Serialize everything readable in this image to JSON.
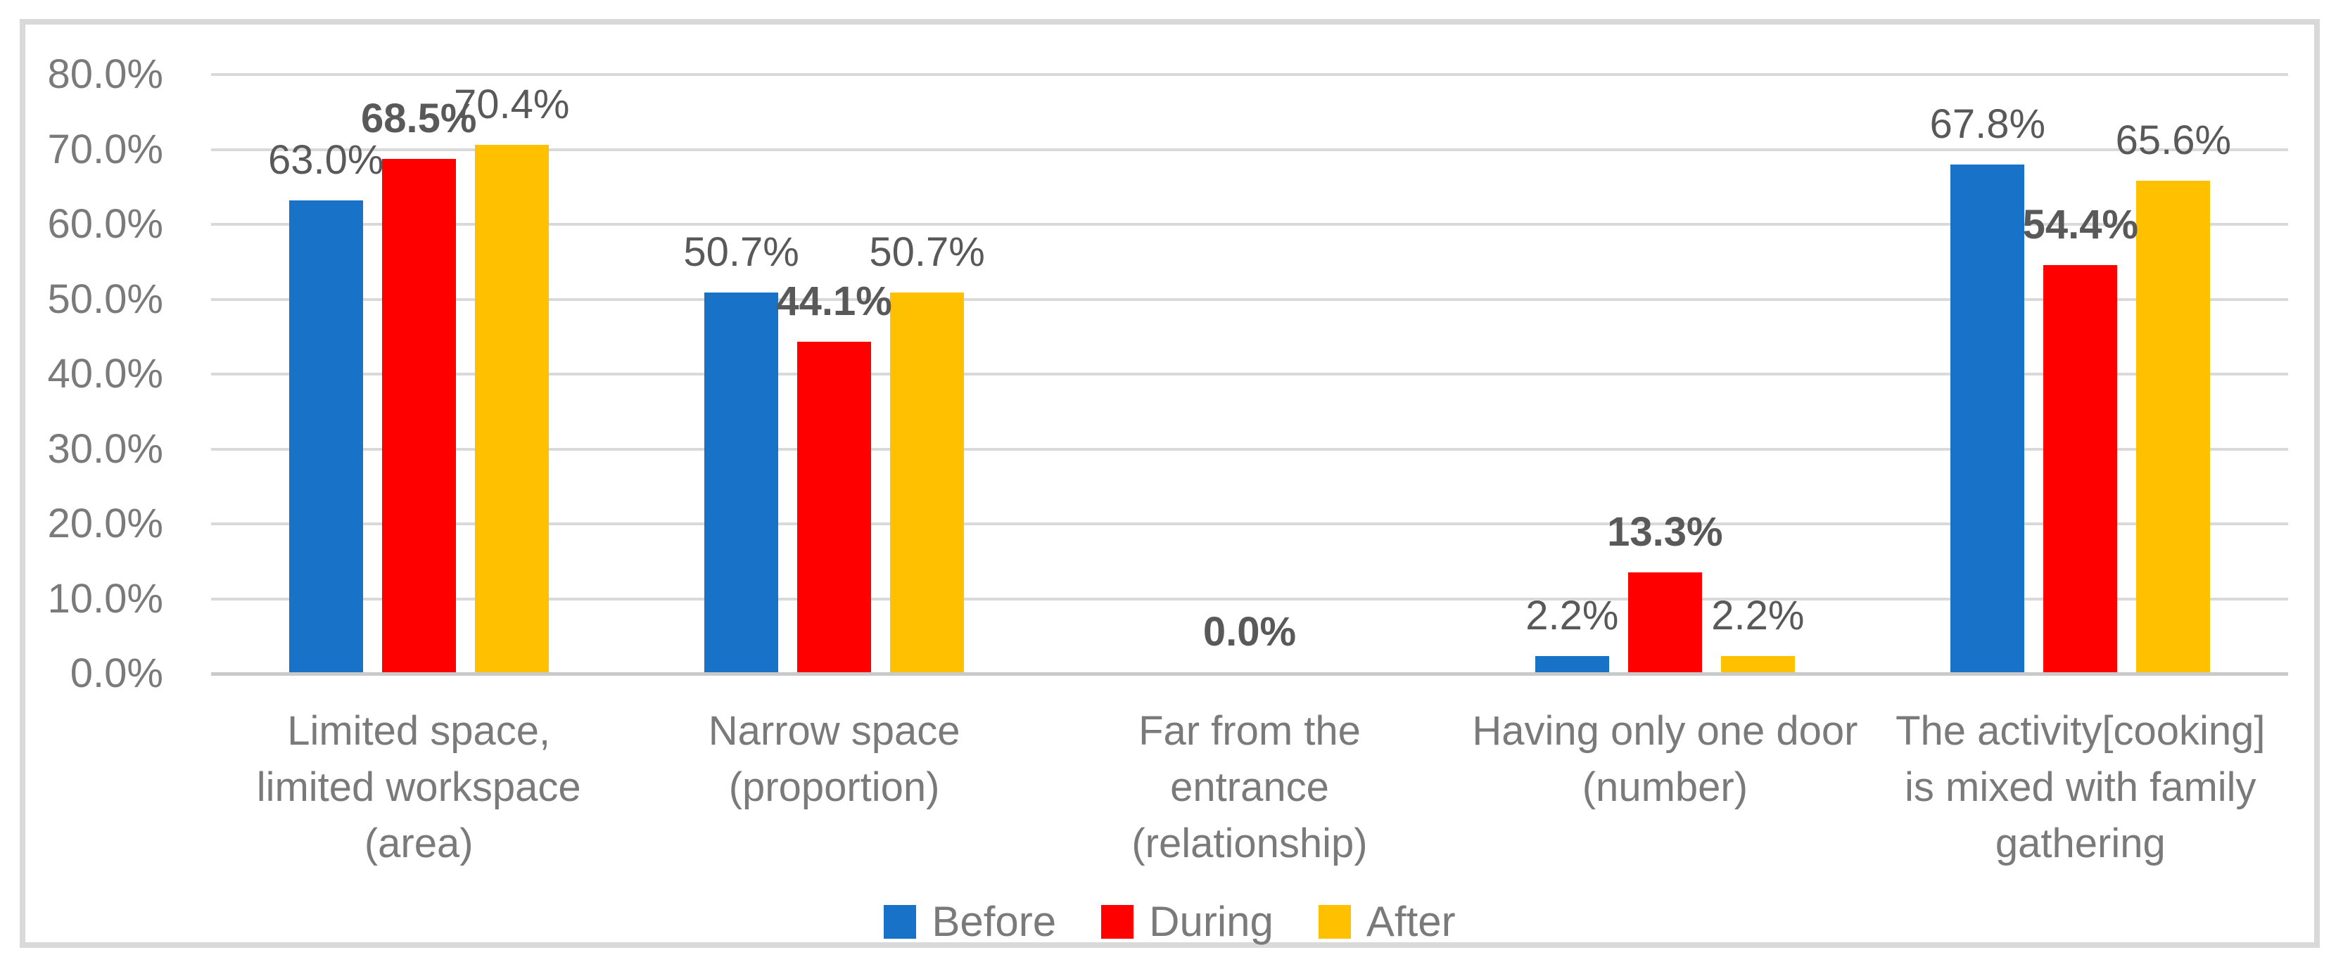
{
  "chart_data": {
    "type": "bar",
    "title": "",
    "subtitle": "",
    "xlabel": "",
    "ylabel": "",
    "grid": true,
    "ylim_percent": [
      0,
      80
    ],
    "categories": [
      "Limited space, limited workspace (area)",
      "Narrow space (proportion)",
      "Far from the entrance (relationship)",
      "Having only one door (number)",
      "The activity[cooking] is mixed with family gathering"
    ],
    "category_lines": [
      [
        "Limited space,",
        "limited workspace",
        "(area)"
      ],
      [
        "Narrow space",
        "(proportion)"
      ],
      [
        "Far from the",
        "entrance",
        "(relationship)"
      ],
      [
        "Having only one door",
        "(number)"
      ],
      [
        "The activity[cooking]",
        "is mixed with family",
        "gathering"
      ]
    ],
    "series": [
      {
        "name": "Before",
        "color": "#1772C8",
        "values": [
          63.0,
          50.7,
          0.0,
          2.2,
          67.8
        ],
        "labels": [
          "63.0%",
          "50.7%",
          null,
          "2.2%",
          "67.8%"
        ],
        "bold_labels": false
      },
      {
        "name": "During",
        "color": "#FF0000",
        "values": [
          68.5,
          44.1,
          0.0,
          13.3,
          54.4
        ],
        "labels": [
          "68.5%",
          "44.1%",
          "0.0%",
          "13.3%",
          "54.4%"
        ],
        "bold_labels": true
      },
      {
        "name": "After",
        "color": "#FFC000",
        "values": [
          70.4,
          50.7,
          0.0,
          2.2,
          65.6
        ],
        "labels": [
          "70.4%",
          "50.7%",
          null,
          "2.2%",
          "65.6%"
        ],
        "bold_labels": false
      }
    ],
    "y_axis": {
      "min_label": "0.0%",
      "max_label": "80.0%",
      "major_unit_label": "10.0%",
      "tick_labels": [
        "80.0%",
        "70.0%",
        "60.0%",
        "50.0%",
        "40.0%",
        "30.0%",
        "20.0%",
        "10.0%",
        "0.0%"
      ]
    },
    "legend": {
      "position": "bottom",
      "entries": [
        "Before",
        "During",
        "After"
      ]
    },
    "colors": {
      "gridline": "#D9D9D9",
      "axis_line": "#C9C9C9",
      "frame_border": "#D9D9D9",
      "tick_text": "#7A7A7A",
      "category_text": "#7A7A7A",
      "legend_text": "#7A7A7A",
      "data_label_text": "#595959",
      "background": "#FFFFFF"
    }
  }
}
